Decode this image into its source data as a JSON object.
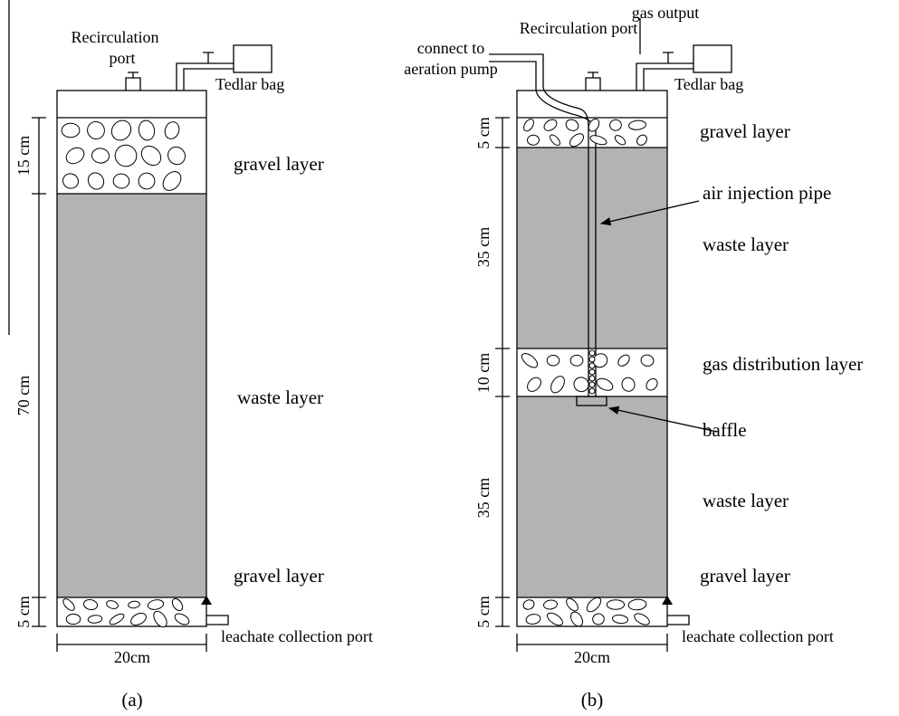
{
  "panel_a": {
    "recirculation_port": [
      "Recirculation",
      "port"
    ],
    "tedlar_bag": "Tedlar bag",
    "layers": [
      "gravel layer",
      "waste layer",
      "gravel layer"
    ],
    "leachate_port": "leachate collection port",
    "heights": [
      "15 cm",
      "70 cm",
      "5 cm"
    ],
    "width": "20cm",
    "caption": "(a)"
  },
  "panel_b": {
    "aeration": [
      "connect to",
      "aeration pump"
    ],
    "recirculation_port": "Recirculation port",
    "gas_output": "gas output",
    "tedlar_bag": "Tedlar bag",
    "layers": [
      "gravel layer",
      "waste layer",
      "gas distribution layer",
      "waste layer",
      "gravel layer"
    ],
    "air_injection_pipe": "air injection pipe",
    "baffle": "baffle",
    "leachate_port": "leachate collection port",
    "heights": [
      "5 cm",
      "35 cm",
      "10 cm",
      "35 cm",
      "5 cm"
    ],
    "width": "20cm",
    "caption": "(b)"
  }
}
